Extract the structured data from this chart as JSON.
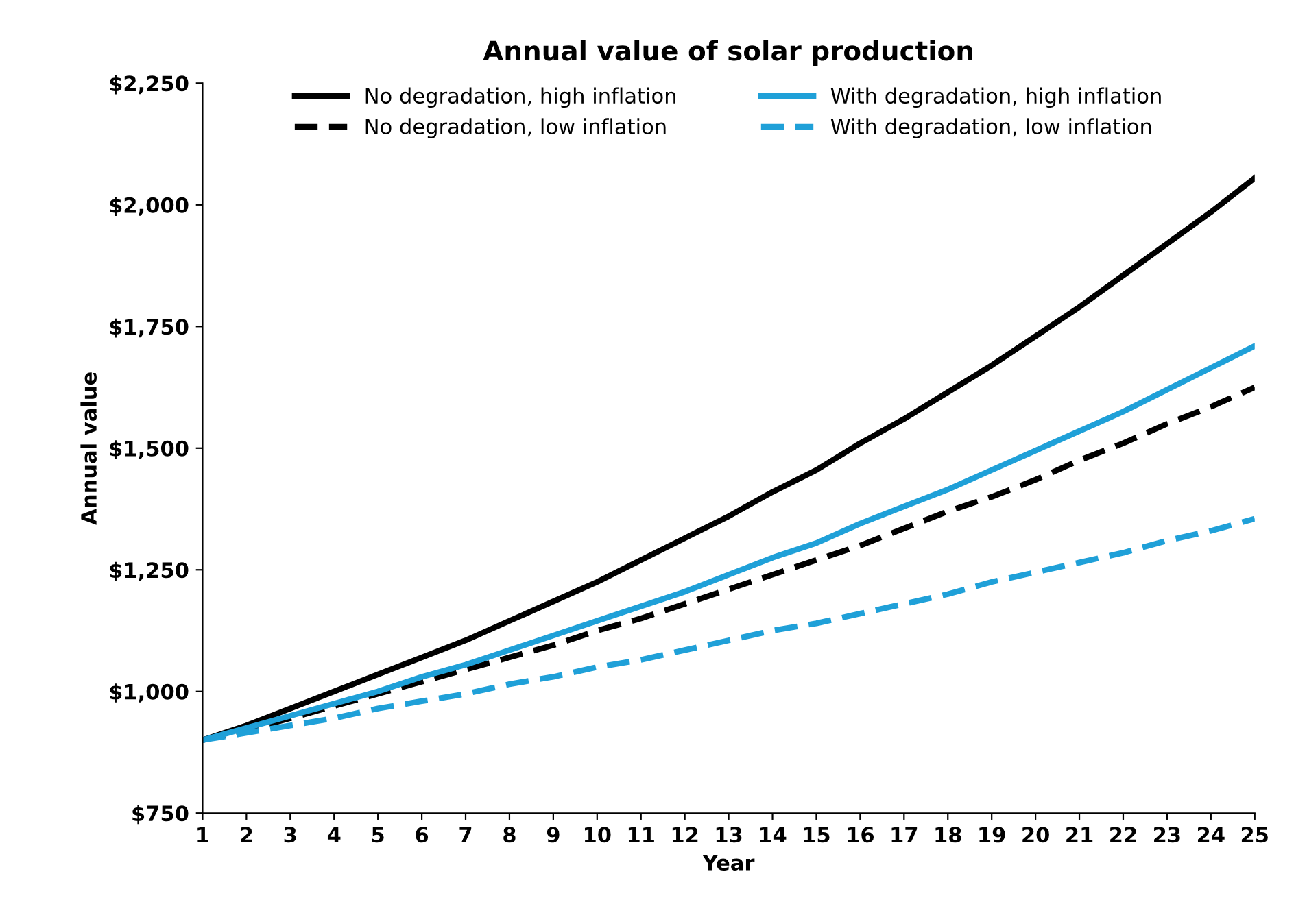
{
  "chart_data": {
    "type": "line",
    "title": "Annual value of solar production",
    "xlabel": "Year",
    "ylabel": "Annual value",
    "x": [
      1,
      2,
      3,
      4,
      5,
      6,
      7,
      8,
      9,
      10,
      11,
      12,
      13,
      14,
      15,
      16,
      17,
      18,
      19,
      20,
      21,
      22,
      23,
      24,
      25
    ],
    "xlim": [
      1,
      25
    ],
    "xticks": [
      1,
      2,
      3,
      4,
      5,
      6,
      7,
      8,
      9,
      10,
      11,
      12,
      13,
      14,
      15,
      16,
      17,
      18,
      19,
      20,
      21,
      22,
      23,
      24,
      25
    ],
    "ylim": [
      750,
      2250
    ],
    "yticks": [
      {
        "value": 750,
        "label": "$750"
      },
      {
        "value": 1000,
        "label": "$1,000"
      },
      {
        "value": 1250,
        "label": "$1,250"
      },
      {
        "value": 1500,
        "label": "$1,500"
      },
      {
        "value": 1750,
        "label": "$1,750"
      },
      {
        "value": 2000,
        "label": "$2,000"
      },
      {
        "value": 2250,
        "label": "$2,250"
      }
    ],
    "grid": false,
    "legend": "top",
    "marker": "none",
    "series": [
      {
        "name": "No degradation, high inflation",
        "color": "#000000",
        "line_style": "solid",
        "values": [
          900,
          930,
          965,
          1000,
          1035,
          1070,
          1105,
          1145,
          1185,
          1225,
          1270,
          1315,
          1360,
          1410,
          1455,
          1510,
          1560,
          1615,
          1670,
          1730,
          1790,
          1855,
          1920,
          1985,
          2055
        ]
      },
      {
        "name": "No degradation, low inflation",
        "color": "#000000",
        "line_style": "dashed",
        "values": [
          900,
          920,
          945,
          970,
          995,
          1020,
          1045,
          1070,
          1095,
          1125,
          1150,
          1180,
          1210,
          1240,
          1270,
          1300,
          1335,
          1370,
          1400,
          1435,
          1475,
          1510,
          1550,
          1585,
          1625
        ]
      },
      {
        "name": "With degradation, high inflation",
        "color": "#1fa0d8",
        "line_style": "solid",
        "values": [
          900,
          925,
          950,
          975,
          1000,
          1030,
          1055,
          1085,
          1115,
          1145,
          1175,
          1205,
          1240,
          1275,
          1305,
          1345,
          1380,
          1415,
          1455,
          1495,
          1535,
          1575,
          1620,
          1665,
          1710
        ]
      },
      {
        "name": "With degradation, low inflation",
        "color": "#1fa0d8",
        "line_style": "dashed",
        "values": [
          900,
          915,
          930,
          945,
          965,
          980,
          995,
          1015,
          1030,
          1050,
          1065,
          1085,
          1105,
          1125,
          1140,
          1160,
          1180,
          1200,
          1225,
          1245,
          1265,
          1285,
          1310,
          1330,
          1355
        ]
      }
    ]
  }
}
